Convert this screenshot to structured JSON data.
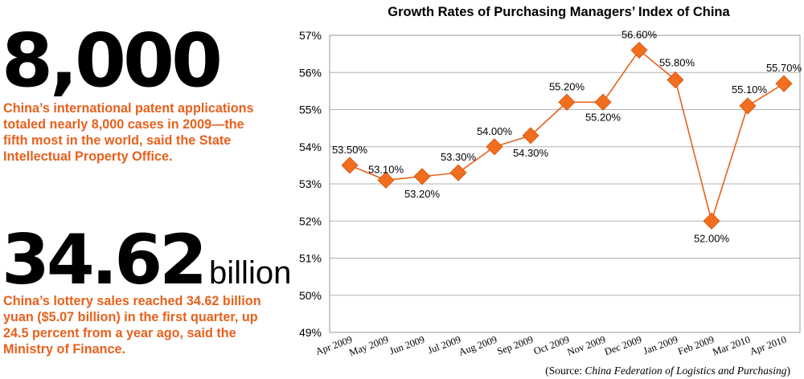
{
  "stats": [
    {
      "number": "8,000",
      "unit": "",
      "description": "China’s international patent applications totaled nearly 8,000 cases in 2009—the fifth most in the world, said the State Intellectual Property Office."
    },
    {
      "number": "34.62",
      "unit": "billion",
      "description": "China’s lottery sales reached 34.62 billion yuan ($5.07 billion) in the first quarter, up 24.5 percent from a year ago, said the Ministry of Finance."
    }
  ],
  "colors": {
    "accent": "#e8601c",
    "marker": "#f06e1e",
    "line": "#e8601c",
    "grid": "#b3b3b3",
    "text": "#000000"
  },
  "chart_data": {
    "type": "line",
    "title": "Growth Rates of Purchasing Managers’ Index of China",
    "xlabel": "",
    "ylabel": "",
    "categories": [
      "Apr 2009",
      "May 2009",
      "Jun 2009",
      "Jul 2009",
      "Aug 2009",
      "Sep 2009",
      "Oct 2009",
      "Nov 2009",
      "Dec 2009",
      "Jan 2009",
      "Feb 2009",
      "Mar  2010",
      "Apr 2010"
    ],
    "series": [
      {
        "values": [
          53.5,
          53.1,
          53.2,
          53.3,
          54.0,
          54.3,
          55.2,
          55.2,
          56.6,
          55.8,
          52.0,
          55.1,
          55.7
        ],
        "labels": [
          "53.50%",
          "53.10%",
          "53.20%",
          "53.30%",
          "54.00%",
          "54.30%",
          "55.20%",
          "55.20%",
          "56.60%",
          "55.80%",
          "52.00%",
          "55.10%",
          "55.70%"
        ]
      }
    ],
    "ylim": [
      49,
      57
    ],
    "yticks": [
      "49%",
      "50%",
      "51%",
      "52%",
      "53%",
      "54%",
      "55%",
      "56%",
      "57%"
    ],
    "grid": true,
    "legend": "none",
    "marker": "diamond",
    "source_prefix": "(Source: ",
    "source_name": "China Federation of Logistics and Purchasing",
    "source_suffix": ")"
  }
}
